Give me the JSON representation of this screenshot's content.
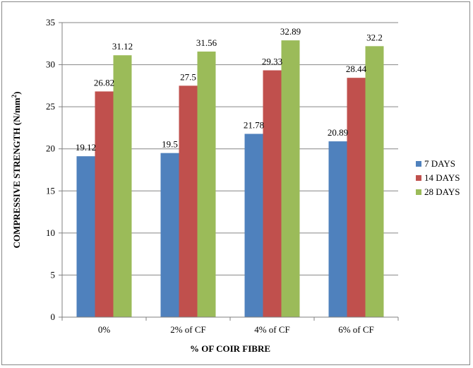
{
  "chart_data": {
    "type": "bar",
    "title": "",
    "xlabel": "% OF COIR FIBRE",
    "ylabel": "COMPRESSIVE STRENGTH (N/mm²)",
    "ylabel_main": "COMPRESSIVE STRENGTH (N/mm",
    "ylabel_sup": "2",
    "ylabel_end": ")",
    "ylim": [
      0,
      35
    ],
    "yticks": [
      "0",
      "5",
      "10",
      "15",
      "20",
      "25",
      "30",
      "35"
    ],
    "categories": [
      "0%",
      "2% of CF",
      "4% of CF",
      "6% of CF"
    ],
    "series": [
      {
        "name": "7 DAYS",
        "color": "#4F81BD",
        "values": [
          19.12,
          19.5,
          21.78,
          20.89
        ],
        "labels": [
          "19.12",
          "19.5",
          "21.78",
          "20.89"
        ]
      },
      {
        "name": "14 DAYS",
        "color": "#C0504D",
        "values": [
          26.82,
          27.5,
          29.33,
          28.44
        ],
        "labels": [
          "26.82",
          "27.5",
          "29.33",
          "28.44"
        ]
      },
      {
        "name": "28 DAYS",
        "color": "#9BBB59",
        "values": [
          31.12,
          31.56,
          32.89,
          32.2
        ],
        "labels": [
          "31.12",
          "31.56",
          "32.89",
          "32.2"
        ]
      }
    ],
    "grid": true,
    "legend": "right"
  }
}
